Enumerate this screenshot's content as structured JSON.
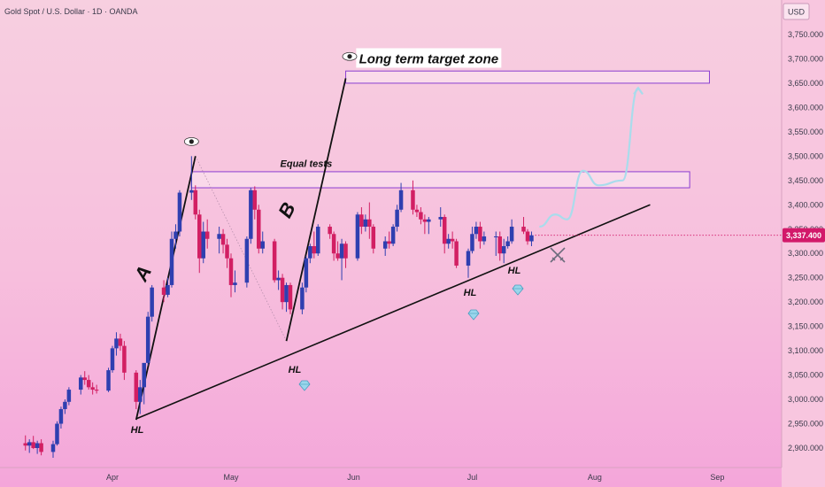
{
  "header": {
    "symbol_title": "Gold Spot / U.S. Dollar · 1D · OANDA"
  },
  "price_axis": {
    "currency": "USD",
    "last_price_label": "3,337.400"
  },
  "colors": {
    "bull": "#2f3fb0",
    "bear": "#d21f63",
    "zone_stroke": "#8a3fd1",
    "zone_fill": "#fbe0ee",
    "projection": "#a9dcec",
    "trendline": "#111111",
    "price_badge": "#d2196a"
  },
  "annotations": {
    "target_zone": "Long term target zone",
    "equal_tests": "Equal tests",
    "leg_a": "A",
    "leg_b": "B",
    "hl": "HL"
  },
  "chart_data": {
    "type": "candlestick",
    "title": "Gold Spot / U.S. Dollar · 1D · OANDA",
    "y_axis": {
      "unit": "USD",
      "ticks": [
        2900,
        2950,
        3000,
        3050,
        3100,
        3150,
        3200,
        3250,
        3300,
        3350,
        3400,
        3450,
        3500,
        3550,
        3600,
        3650,
        3700,
        3750
      ],
      "tick_labels": [
        "2,900.000",
        "2,950.000",
        "3,000.000",
        "3,050.000",
        "3,100.000",
        "3,150.000",
        "3,200.000",
        "3,250.000",
        "3,300.000",
        "3,350.000",
        "3,400.000",
        "3,450.000",
        "3,500.000",
        "3,550.000",
        "3,600.000",
        "3,650.000",
        "3,700.000",
        "3,750.000"
      ],
      "ylim": [
        2880,
        3785
      ]
    },
    "x_axis": {
      "tick_labels": [
        "Apr",
        "May",
        "Jun",
        "Jul",
        "Aug",
        "Sep"
      ],
      "tick_dates": [
        "2025-04-01",
        "2025-05-01",
        "2025-06-01",
        "2025-07-01",
        "2025-08-01",
        "2025-09-01"
      ]
    },
    "candles": [
      {
        "date": "2025-03-10",
        "open": 2910,
        "high": 2926,
        "low": 2895,
        "close": 2905
      },
      {
        "date": "2025-03-11",
        "open": 2905,
        "high": 2918,
        "low": 2890,
        "close": 2912
      },
      {
        "date": "2025-03-12",
        "open": 2912,
        "high": 2925,
        "low": 2898,
        "close": 2900
      },
      {
        "date": "2025-03-13",
        "open": 2900,
        "high": 2915,
        "low": 2888,
        "close": 2910
      },
      {
        "date": "2025-03-14",
        "open": 2910,
        "high": 2918,
        "low": 2885,
        "close": 2892
      },
      {
        "date": "2025-03-17",
        "open": 2892,
        "high": 2915,
        "low": 2880,
        "close": 2908
      },
      {
        "date": "2025-03-18",
        "open": 2908,
        "high": 2955,
        "low": 2905,
        "close": 2950
      },
      {
        "date": "2025-03-19",
        "open": 2950,
        "high": 2985,
        "low": 2940,
        "close": 2980
      },
      {
        "date": "2025-03-20",
        "open": 2980,
        "high": 3000,
        "low": 2970,
        "close": 2995
      },
      {
        "date": "2025-03-21",
        "open": 2995,
        "high": 3025,
        "low": 2988,
        "close": 3020
      },
      {
        "date": "2025-03-24",
        "open": 3020,
        "high": 3050,
        "low": 3010,
        "close": 3045
      },
      {
        "date": "2025-03-25",
        "open": 3045,
        "high": 3058,
        "low": 3030,
        "close": 3040
      },
      {
        "date": "2025-03-26",
        "open": 3040,
        "high": 3050,
        "low": 3020,
        "close": 3025
      },
      {
        "date": "2025-03-27",
        "open": 3025,
        "high": 3035,
        "low": 3010,
        "close": 3020
      },
      {
        "date": "2025-03-28",
        "open": 3020,
        "high": 3030,
        "low": 3012,
        "close": 3018
      },
      {
        "date": "2025-03-31",
        "open": 3018,
        "high": 3065,
        "low": 3015,
        "close": 3060
      },
      {
        "date": "2025-04-01",
        "open": 3060,
        "high": 3110,
        "low": 3055,
        "close": 3105
      },
      {
        "date": "2025-04-02",
        "open": 3105,
        "high": 3138,
        "low": 3090,
        "close": 3125
      },
      {
        "date": "2025-04-03",
        "open": 3125,
        "high": 3135,
        "low": 3100,
        "close": 3110
      },
      {
        "date": "2025-04-04",
        "open": 3110,
        "high": 3120,
        "low": 3040,
        "close": 3055
      },
      {
        "date": "2025-04-07",
        "open": 3055,
        "high": 3060,
        "low": 2980,
        "close": 2995
      },
      {
        "date": "2025-04-08",
        "open": 2995,
        "high": 3040,
        "low": 2970,
        "close": 3025
      },
      {
        "date": "2025-04-09",
        "open": 3025,
        "high": 3070,
        "low": 2990,
        "close": 3075
      },
      {
        "date": "2025-04-10",
        "open": 3075,
        "high": 3180,
        "low": 3070,
        "close": 3170
      },
      {
        "date": "2025-04-11",
        "open": 3170,
        "high": 3235,
        "low": 3160,
        "close": 3230
      },
      {
        "date": "2025-04-14",
        "open": 3230,
        "high": 3245,
        "low": 3200,
        "close": 3215
      },
      {
        "date": "2025-04-15",
        "open": 3215,
        "high": 3250,
        "low": 3210,
        "close": 3235
      },
      {
        "date": "2025-04-16",
        "open": 3235,
        "high": 3345,
        "low": 3230,
        "close": 3330
      },
      {
        "date": "2025-04-17",
        "open": 3330,
        "high": 3360,
        "low": 3310,
        "close": 3345
      },
      {
        "date": "2025-04-18",
        "open": 3345,
        "high": 3430,
        "low": 3335,
        "close": 3425
      },
      {
        "date": "2025-04-21",
        "open": 3425,
        "high": 3500,
        "low": 3410,
        "close": 3430
      },
      {
        "date": "2025-04-22",
        "open": 3430,
        "high": 3440,
        "low": 3370,
        "close": 3380
      },
      {
        "date": "2025-04-23",
        "open": 3380,
        "high": 3390,
        "low": 3260,
        "close": 3290
      },
      {
        "date": "2025-04-24",
        "open": 3290,
        "high": 3365,
        "low": 3280,
        "close": 3345
      },
      {
        "date": "2025-04-25",
        "open": 3345,
        "high": 3370,
        "low": 3310,
        "close": 3330
      },
      {
        "date": "2025-04-28",
        "open": 3330,
        "high": 3355,
        "low": 3300,
        "close": 3340
      },
      {
        "date": "2025-04-29",
        "open": 3340,
        "high": 3350,
        "low": 3300,
        "close": 3318
      },
      {
        "date": "2025-04-30",
        "open": 3318,
        "high": 3330,
        "low": 3270,
        "close": 3290
      },
      {
        "date": "2025-05-01",
        "open": 3290,
        "high": 3300,
        "low": 3210,
        "close": 3235
      },
      {
        "date": "2025-05-02",
        "open": 3235,
        "high": 3265,
        "low": 3220,
        "close": 3240
      },
      {
        "date": "2025-05-05",
        "open": 3240,
        "high": 3335,
        "low": 3230,
        "close": 3330
      },
      {
        "date": "2025-05-06",
        "open": 3330,
        "high": 3435,
        "low": 3320,
        "close": 3430
      },
      {
        "date": "2025-05-07",
        "open": 3430,
        "high": 3438,
        "low": 3370,
        "close": 3390
      },
      {
        "date": "2025-05-08",
        "open": 3390,
        "high": 3400,
        "low": 3300,
        "close": 3310
      },
      {
        "date": "2025-05-09",
        "open": 3310,
        "high": 3345,
        "low": 3300,
        "close": 3325
      },
      {
        "date": "2025-05-12",
        "open": 3325,
        "high": 3330,
        "low": 3240,
        "close": 3245
      },
      {
        "date": "2025-05-13",
        "open": 3245,
        "high": 3265,
        "low": 3225,
        "close": 3250
      },
      {
        "date": "2025-05-14",
        "open": 3250,
        "high": 3258,
        "low": 3185,
        "close": 3200
      },
      {
        "date": "2025-05-15",
        "open": 3200,
        "high": 3240,
        "low": 3180,
        "close": 3235
      },
      {
        "date": "2025-05-16",
        "open": 3235,
        "high": 3240,
        "low": 3175,
        "close": 3185
      },
      {
        "date": "2025-05-19",
        "open": 3185,
        "high": 3240,
        "low": 3175,
        "close": 3230
      },
      {
        "date": "2025-05-20",
        "open": 3230,
        "high": 3295,
        "low": 3220,
        "close": 3290
      },
      {
        "date": "2025-05-21",
        "open": 3290,
        "high": 3320,
        "low": 3280,
        "close": 3315
      },
      {
        "date": "2025-05-22",
        "open": 3315,
        "high": 3345,
        "low": 3290,
        "close": 3300
      },
      {
        "date": "2025-05-23",
        "open": 3300,
        "high": 3360,
        "low": 3295,
        "close": 3355
      },
      {
        "date": "2025-05-26",
        "open": 3355,
        "high": 3360,
        "low": 3330,
        "close": 3340
      },
      {
        "date": "2025-05-27",
        "open": 3340,
        "high": 3345,
        "low": 3285,
        "close": 3300
      },
      {
        "date": "2025-05-28",
        "open": 3300,
        "high": 3325,
        "low": 3285,
        "close": 3290
      },
      {
        "date": "2025-05-29",
        "open": 3290,
        "high": 3330,
        "low": 3245,
        "close": 3320
      },
      {
        "date": "2025-05-30",
        "open": 3320,
        "high": 3325,
        "low": 3270,
        "close": 3290
      },
      {
        "date": "2025-06-02",
        "open": 3290,
        "high": 3385,
        "low": 3285,
        "close": 3380
      },
      {
        "date": "2025-06-03",
        "open": 3380,
        "high": 3395,
        "low": 3340,
        "close": 3355
      },
      {
        "date": "2025-06-04",
        "open": 3355,
        "high": 3380,
        "low": 3345,
        "close": 3370
      },
      {
        "date": "2025-06-05",
        "open": 3370,
        "high": 3405,
        "low": 3330,
        "close": 3355
      },
      {
        "date": "2025-06-06",
        "open": 3355,
        "high": 3360,
        "low": 3300,
        "close": 3310
      },
      {
        "date": "2025-06-09",
        "open": 3310,
        "high": 3335,
        "low": 3295,
        "close": 3325
      },
      {
        "date": "2025-06-10",
        "open": 3325,
        "high": 3345,
        "low": 3310,
        "close": 3320
      },
      {
        "date": "2025-06-11",
        "open": 3320,
        "high": 3360,
        "low": 3315,
        "close": 3355
      },
      {
        "date": "2025-06-12",
        "open": 3355,
        "high": 3400,
        "low": 3345,
        "close": 3390
      },
      {
        "date": "2025-06-13",
        "open": 3390,
        "high": 3445,
        "low": 3385,
        "close": 3430
      },
      {
        "date": "2025-06-16",
        "open": 3430,
        "high": 3450,
        "low": 3380,
        "close": 3390
      },
      {
        "date": "2025-06-17",
        "open": 3390,
        "high": 3400,
        "low": 3375,
        "close": 3385
      },
      {
        "date": "2025-06-18",
        "open": 3385,
        "high": 3395,
        "low": 3360,
        "close": 3370
      },
      {
        "date": "2025-06-19",
        "open": 3370,
        "high": 3380,
        "low": 3340,
        "close": 3365
      },
      {
        "date": "2025-06-20",
        "open": 3365,
        "high": 3375,
        "low": 3340,
        "close": 3370
      },
      {
        "date": "2025-06-23",
        "open": 3370,
        "high": 3395,
        "low": 3355,
        "close": 3375
      },
      {
        "date": "2025-06-24",
        "open": 3375,
        "high": 3380,
        "low": 3300,
        "close": 3320
      },
      {
        "date": "2025-06-25",
        "open": 3320,
        "high": 3340,
        "low": 3310,
        "close": 3330
      },
      {
        "date": "2025-06-26",
        "open": 3330,
        "high": 3345,
        "low": 3310,
        "close": 3325
      },
      {
        "date": "2025-06-27",
        "open": 3325,
        "high": 3330,
        "low": 3270,
        "close": 3275
      },
      {
        "date": "2025-06-30",
        "open": 3275,
        "high": 3310,
        "low": 3250,
        "close": 3305
      },
      {
        "date": "2025-07-01",
        "open": 3305,
        "high": 3355,
        "low": 3300,
        "close": 3340
      },
      {
        "date": "2025-07-02",
        "open": 3340,
        "high": 3365,
        "low": 3330,
        "close": 3355
      },
      {
        "date": "2025-07-03",
        "open": 3355,
        "high": 3365,
        "low": 3310,
        "close": 3325
      },
      {
        "date": "2025-07-04",
        "open": 3325,
        "high": 3345,
        "low": 3318,
        "close": 3335
      },
      {
        "date": "2025-07-07",
        "open": 3335,
        "high": 3345,
        "low": 3295,
        "close": 3335
      },
      {
        "date": "2025-07-08",
        "open": 3335,
        "high": 3345,
        "low": 3285,
        "close": 3300
      },
      {
        "date": "2025-07-09",
        "open": 3300,
        "high": 3330,
        "low": 3280,
        "close": 3315
      },
      {
        "date": "2025-07-10",
        "open": 3315,
        "high": 3335,
        "low": 3310,
        "close": 3325
      },
      {
        "date": "2025-07-11",
        "open": 3325,
        "high": 3370,
        "low": 3320,
        "close": 3355
      },
      {
        "date": "2025-07-14",
        "open": 3355,
        "high": 3375,
        "low": 3340,
        "close": 3345
      },
      {
        "date": "2025-07-15",
        "open": 3345,
        "high": 3350,
        "low": 3318,
        "close": 3325
      },
      {
        "date": "2025-07-16",
        "open": 3325,
        "high": 3345,
        "low": 3315,
        "close": 3337.4
      }
    ],
    "series": [
      {
        "name": "",
        "type": "trendline_support",
        "points": [
          {
            "x": "2025-04-07",
            "y": 2960
          },
          {
            "x": "2025-08-15",
            "y": 3400
          }
        ]
      },
      {
        "name": "",
        "type": "leg_A",
        "points": [
          {
            "x": "2025-04-07",
            "y": 2958
          },
          {
            "x": "2025-04-22",
            "y": 3500
          }
        ]
      },
      {
        "name": "",
        "type": "leg_B",
        "points": [
          {
            "x": "2025-05-15",
            "y": 3120
          },
          {
            "x": "2025-05-30",
            "y": 3660
          }
        ]
      },
      {
        "name": "",
        "type": "projection_path",
        "points": [
          {
            "x": "2025-07-18",
            "y": 3355
          },
          {
            "x": "2025-07-22",
            "y": 3380
          },
          {
            "x": "2025-07-25",
            "y": 3370
          },
          {
            "x": "2025-07-29",
            "y": 3470
          },
          {
            "x": "2025-08-02",
            "y": 3440
          },
          {
            "x": "2025-08-08",
            "y": 3450
          },
          {
            "x": "2025-08-12",
            "y": 3640
          }
        ]
      }
    ],
    "zones": [
      {
        "label": "Equal tests",
        "x_start": "2025-04-21",
        "x_end": "2025-08-25",
        "y_low": 3435,
        "y_high": 3468
      },
      {
        "label": "Long term target zone",
        "x_start": "2025-05-30",
        "x_end": "2025-08-30",
        "y_low": 3650,
        "y_high": 3675
      }
    ],
    "hl_markers": [
      {
        "label": "HL",
        "x": "2025-04-07",
        "y": 2958
      },
      {
        "label": "HL",
        "x": "2025-05-15",
        "y": 3120
      },
      {
        "label": "HL",
        "x": "2025-06-27",
        "y": 3250
      },
      {
        "label": "HL",
        "x": "2025-07-09",
        "y": 3280
      }
    ],
    "last_price": 3337.4,
    "grid": false
  }
}
